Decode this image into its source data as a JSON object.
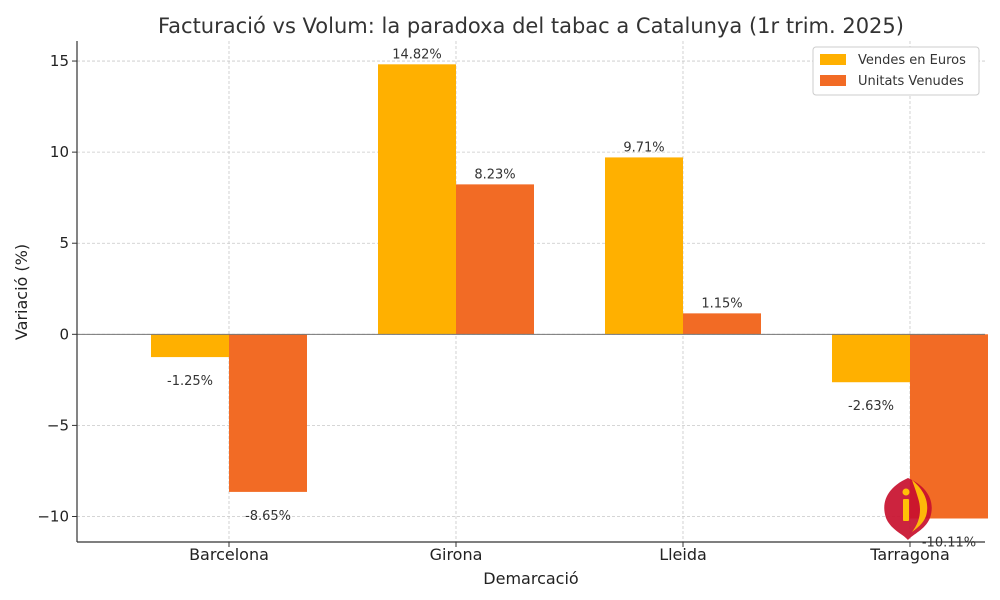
{
  "chart_data": {
    "type": "bar",
    "title": "Facturació vs Volum: la paradoxa del tabac a Catalunya (1r trim. 2025)",
    "xlabel": "Demarcació",
    "ylabel": "Variació (%)",
    "categories": [
      "Barcelona",
      "Girona",
      "Lleida",
      "Tarragona"
    ],
    "series": [
      {
        "name": "Vendes en Euros",
        "color": "#ffb000",
        "values": [
          -1.25,
          14.82,
          9.71,
          -2.63
        ],
        "labels": [
          "-1.25%",
          "14.82%",
          "9.71%",
          "-2.63%"
        ]
      },
      {
        "name": "Unitats Venudes",
        "color": "#f26b25",
        "values": [
          -8.65,
          8.23,
          1.15,
          -10.11
        ],
        "labels": [
          "-8.65%",
          "8.23%",
          "1.15%",
          "-10.11%"
        ]
      }
    ],
    "ylim": [
      -11.4,
      16.1
    ],
    "yticks": [
      15,
      10,
      5,
      0,
      -5,
      -10
    ],
    "ytick_labels": [
      "15",
      "10",
      "5",
      "0",
      "−5",
      "−10"
    ],
    "grid": true,
    "legend_position": "top-right"
  },
  "logo": {
    "icon": "info-i-logo-icon",
    "colors": {
      "primary": "#c8102e",
      "accent": "#ffc107"
    }
  }
}
